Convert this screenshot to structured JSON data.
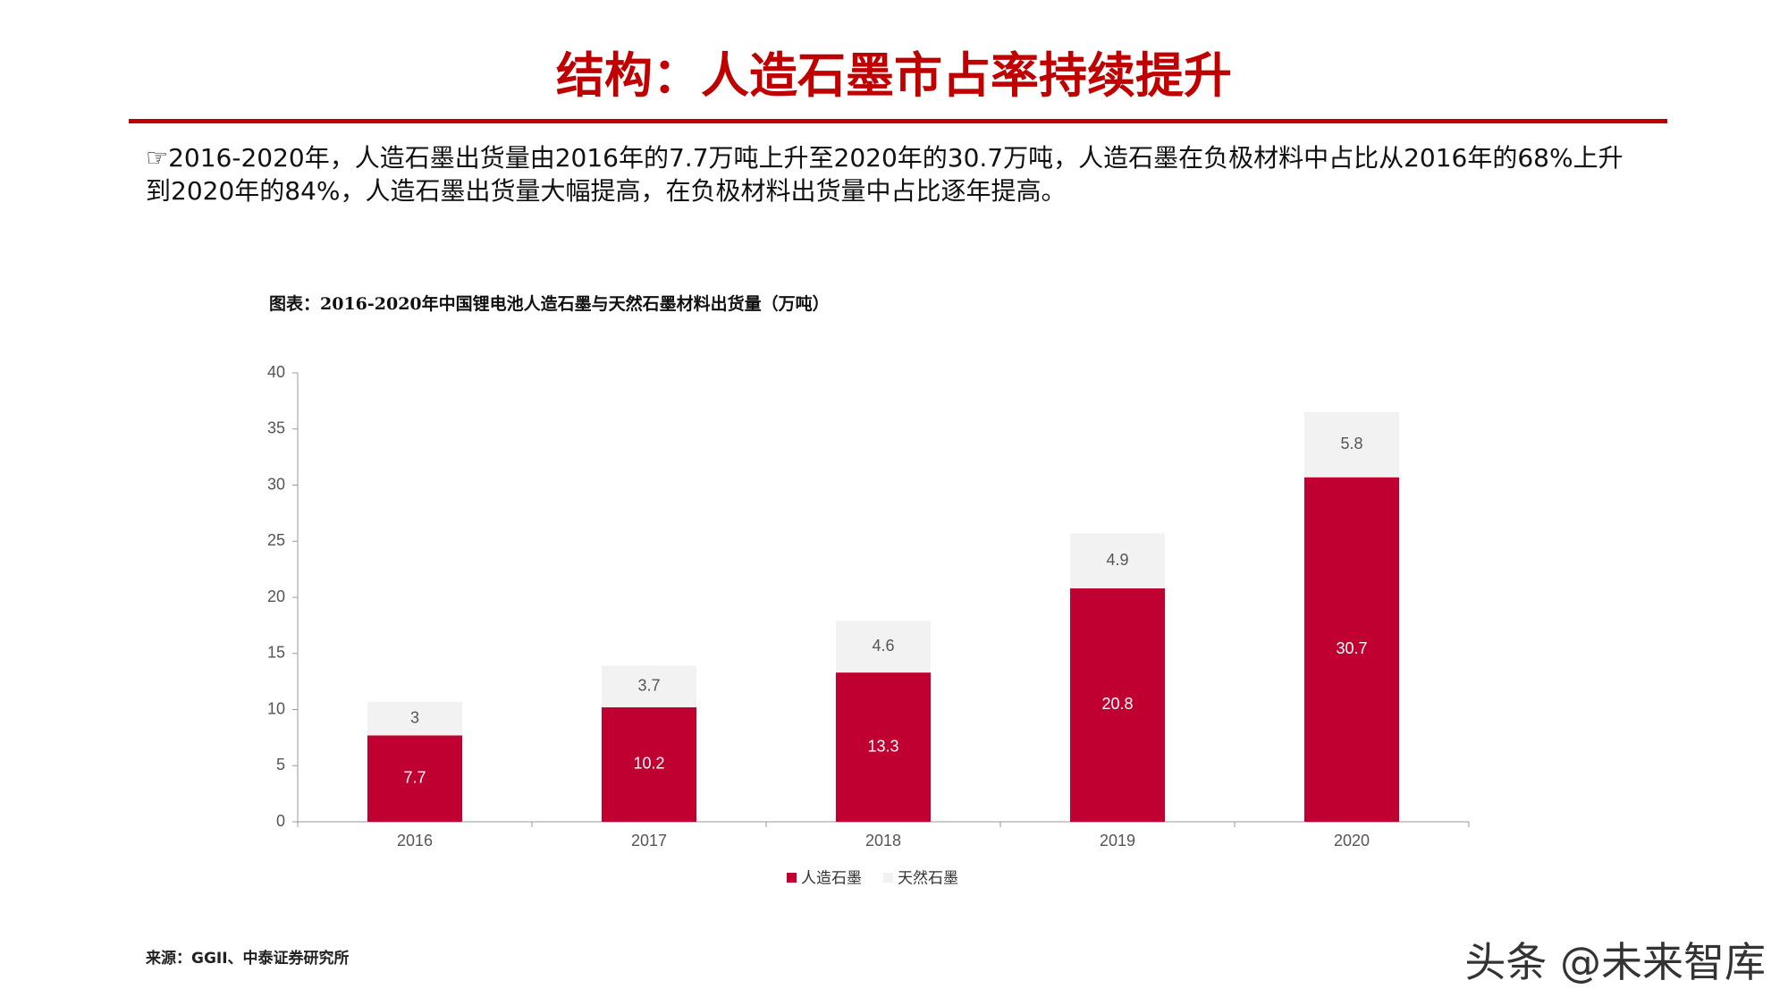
{
  "header": {
    "title": "结构：人造石墨市占率持续提升"
  },
  "body": {
    "text": "☞2016-2020年，人造石墨出货量由2016年的7.7万吨上升至2020年的30.7万吨，人造石墨在负极材料中占比从2016年的68%上升到2020年的84%，人造石墨出货量大幅提高，在负极材料出货量中占比逐年提高。"
  },
  "chart_data": {
    "type": "stacked_bar",
    "title": "图表：2016-2020年中国锂电池人造石墨与天然石墨材料出货量（万吨）",
    "categories": [
      "2016",
      "2017",
      "2018",
      "2019",
      "2020"
    ],
    "series": [
      {
        "name": "人造石墨",
        "color": "#c00030",
        "values": [
          7.7,
          10.2,
          13.3,
          20.8,
          30.7
        ]
      },
      {
        "name": "天然石墨",
        "color": "#f2f2f2",
        "values": [
          3,
          3.7,
          4.6,
          4.9,
          5.8
        ]
      }
    ],
    "ylim": [
      0,
      40
    ],
    "yticks": [
      0,
      5,
      10,
      15,
      20,
      25,
      30,
      35,
      40
    ],
    "grid": false
  },
  "footer": {
    "source": "来源：GGII、中泰证券研究所",
    "watermark": "头条 @未来智库"
  }
}
